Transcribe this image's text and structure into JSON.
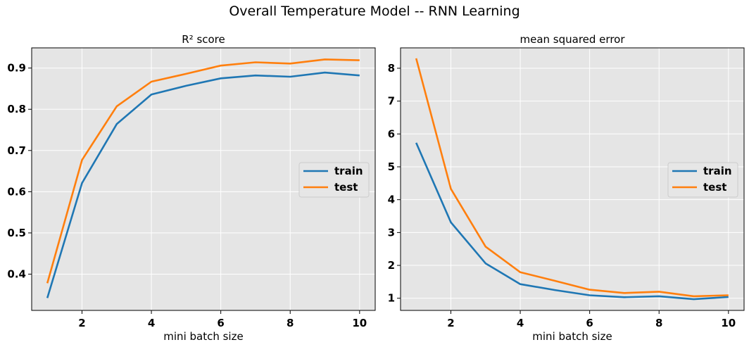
{
  "figure_title": "Overall Temperature Model -- RNN Learning",
  "colors": {
    "train": "#1f77b4",
    "test": "#ff7f0e",
    "axes_bg": "#e5e5e5",
    "grid": "#ffffff"
  },
  "chart_data": [
    {
      "type": "line",
      "title": "R² score",
      "xlabel": "mini batch size",
      "ylabel": "",
      "x": [
        1,
        2,
        3,
        4,
        5,
        6,
        7,
        8,
        9,
        10
      ],
      "xticks": [
        "2",
        "4",
        "6",
        "8",
        "10"
      ],
      "yticks": [
        "0.4",
        "0.5",
        "0.6",
        "0.7",
        "0.8",
        "0.9"
      ],
      "xlim": [
        0.55,
        10.45
      ],
      "ylim": [
        0.312,
        0.949
      ],
      "grid": true,
      "legend_position": "center-right",
      "series": [
        {
          "name": "train",
          "values": [
            0.342,
            0.621,
            0.764,
            0.836,
            0.857,
            0.875,
            0.882,
            0.879,
            0.889,
            0.882
          ]
        },
        {
          "name": "test",
          "values": [
            0.378,
            0.677,
            0.807,
            0.867,
            0.886,
            0.906,
            0.914,
            0.911,
            0.921,
            0.919
          ]
        }
      ]
    },
    {
      "type": "line",
      "title": "mean squared error",
      "xlabel": "mini batch size",
      "ylabel": "",
      "x": [
        1,
        2,
        3,
        4,
        5,
        6,
        7,
        8,
        9,
        10
      ],
      "xticks": [
        "2",
        "4",
        "6",
        "8",
        "10"
      ],
      "yticks": [
        "1",
        "2",
        "3",
        "4",
        "5",
        "6",
        "7",
        "8"
      ],
      "xlim": [
        0.55,
        10.45
      ],
      "ylim": [
        0.63,
        8.62
      ],
      "grid": true,
      "legend_position": "center-right",
      "series": [
        {
          "name": "train",
          "values": [
            5.73,
            3.31,
            2.06,
            1.43,
            1.25,
            1.09,
            1.03,
            1.06,
            0.97,
            1.04
          ]
        },
        {
          "name": "test",
          "values": [
            8.3,
            4.33,
            2.57,
            1.79,
            1.53,
            1.26,
            1.16,
            1.2,
            1.06,
            1.09
          ]
        }
      ]
    }
  ]
}
